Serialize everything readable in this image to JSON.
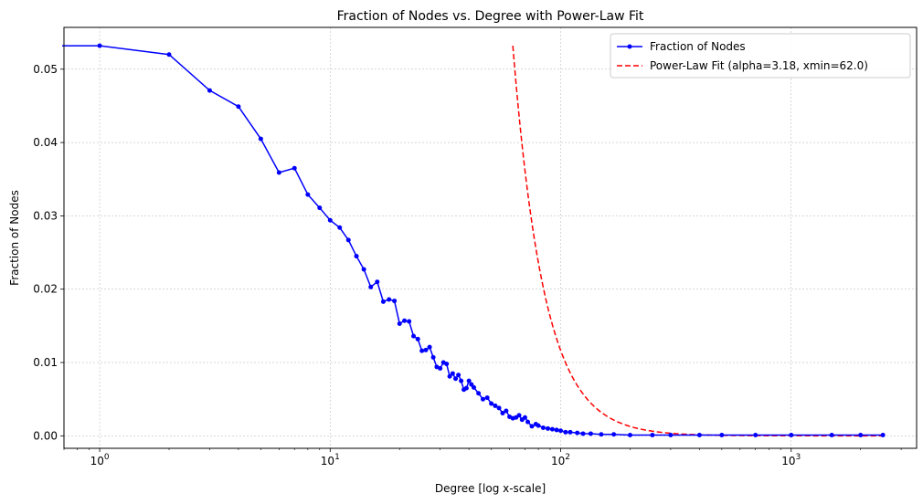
{
  "chart_data": {
    "type": "line",
    "title": "Fraction of Nodes vs. Degree with Power-Law Fit",
    "xlabel": "Degree [log x-scale]",
    "ylabel": "Fraction of Nodes",
    "xscale": "log",
    "xlim": [
      0.7,
      3500
    ],
    "ylim": [
      -0.0017,
      0.0557
    ],
    "grid": true,
    "legend_position": "top-right",
    "x_ticks": [
      {
        "value": 1,
        "base": "10",
        "exp": "0"
      },
      {
        "value": 10,
        "base": "10",
        "exp": "1"
      },
      {
        "value": 100,
        "base": "10",
        "exp": "2"
      },
      {
        "value": 1000,
        "base": "10",
        "exp": "3"
      }
    ],
    "y_ticks": [
      {
        "value": 0.0,
        "label": "0.00"
      },
      {
        "value": 0.01,
        "label": "0.01"
      },
      {
        "value": 0.02,
        "label": "0.02"
      },
      {
        "value": 0.03,
        "label": "0.03"
      },
      {
        "value": 0.04,
        "label": "0.04"
      },
      {
        "value": 0.05,
        "label": "0.05"
      }
    ],
    "series": [
      {
        "name": "Fraction of Nodes",
        "color": "#0000ff",
        "style": "solid-with-markers",
        "points": [
          [
            0,
            0.0532
          ],
          [
            1,
            0.0532
          ],
          [
            2,
            0.052
          ],
          [
            3,
            0.0471
          ],
          [
            4,
            0.0449
          ],
          [
            5,
            0.0405
          ],
          [
            6,
            0.0359
          ],
          [
            7,
            0.0365
          ],
          [
            8,
            0.0329
          ],
          [
            9,
            0.0311
          ],
          [
            10,
            0.0294
          ],
          [
            11,
            0.0284
          ],
          [
            12,
            0.0267
          ],
          [
            13,
            0.0245
          ],
          [
            14,
            0.0227
          ],
          [
            15,
            0.0203
          ],
          [
            16,
            0.021
          ],
          [
            17,
            0.0183
          ],
          [
            18,
            0.0186
          ],
          [
            19,
            0.0184
          ],
          [
            20,
            0.0153
          ],
          [
            21,
            0.0157
          ],
          [
            22,
            0.0156
          ],
          [
            23,
            0.0136
          ],
          [
            24,
            0.0132
          ],
          [
            25,
            0.0116
          ],
          [
            26,
            0.0117
          ],
          [
            27,
            0.0121
          ],
          [
            28,
            0.0107
          ],
          [
            29,
            0.0094
          ],
          [
            30,
            0.0092
          ],
          [
            31,
            0.01
          ],
          [
            32,
            0.0098
          ],
          [
            33,
            0.0081
          ],
          [
            34,
            0.0085
          ],
          [
            35,
            0.0078
          ],
          [
            36,
            0.0083
          ],
          [
            37,
            0.0075
          ],
          [
            38,
            0.0063
          ],
          [
            39,
            0.0065
          ],
          [
            40,
            0.0075
          ],
          [
            41,
            0.007
          ],
          [
            42,
            0.0066
          ],
          [
            44,
            0.0058
          ],
          [
            46,
            0.005
          ],
          [
            48,
            0.0052
          ],
          [
            50,
            0.0044
          ],
          [
            52,
            0.0041
          ],
          [
            54,
            0.0038
          ],
          [
            56,
            0.0031
          ],
          [
            58,
            0.0034
          ],
          [
            60,
            0.0026
          ],
          [
            62,
            0.0024
          ],
          [
            64,
            0.0025
          ],
          [
            66,
            0.0028
          ],
          [
            68,
            0.0022
          ],
          [
            70,
            0.0025
          ],
          [
            72,
            0.0019
          ],
          [
            75,
            0.0013
          ],
          [
            78,
            0.0016
          ],
          [
            80,
            0.0014
          ],
          [
            84,
            0.0011
          ],
          [
            88,
            0.001
          ],
          [
            92,
            0.0009
          ],
          [
            96,
            0.0008
          ],
          [
            100,
            0.0007
          ],
          [
            105,
            0.0005
          ],
          [
            110,
            0.0005
          ],
          [
            118,
            0.0004
          ],
          [
            125,
            0.0003
          ],
          [
            135,
            0.0003
          ],
          [
            150,
            0.0002
          ],
          [
            170,
            0.0002
          ],
          [
            200,
            0.0001
          ],
          [
            250,
            0.0001
          ],
          [
            300,
            0.0001
          ],
          [
            400,
            0.0001
          ],
          [
            500,
            0.0001
          ],
          [
            700,
            0.0001
          ],
          [
            1000,
            0.0001
          ],
          [
            1500,
            0.0001
          ],
          [
            2000,
            0.0001
          ],
          [
            2500,
            0.0001
          ]
        ]
      },
      {
        "name": "Power-Law Fit (alpha=3.18, xmin=62.0)",
        "color": "#ff0000",
        "style": "dashed",
        "alpha": 3.18,
        "xmin": 62.0,
        "ymax": 0.0532,
        "xmax": 2500
      }
    ]
  }
}
